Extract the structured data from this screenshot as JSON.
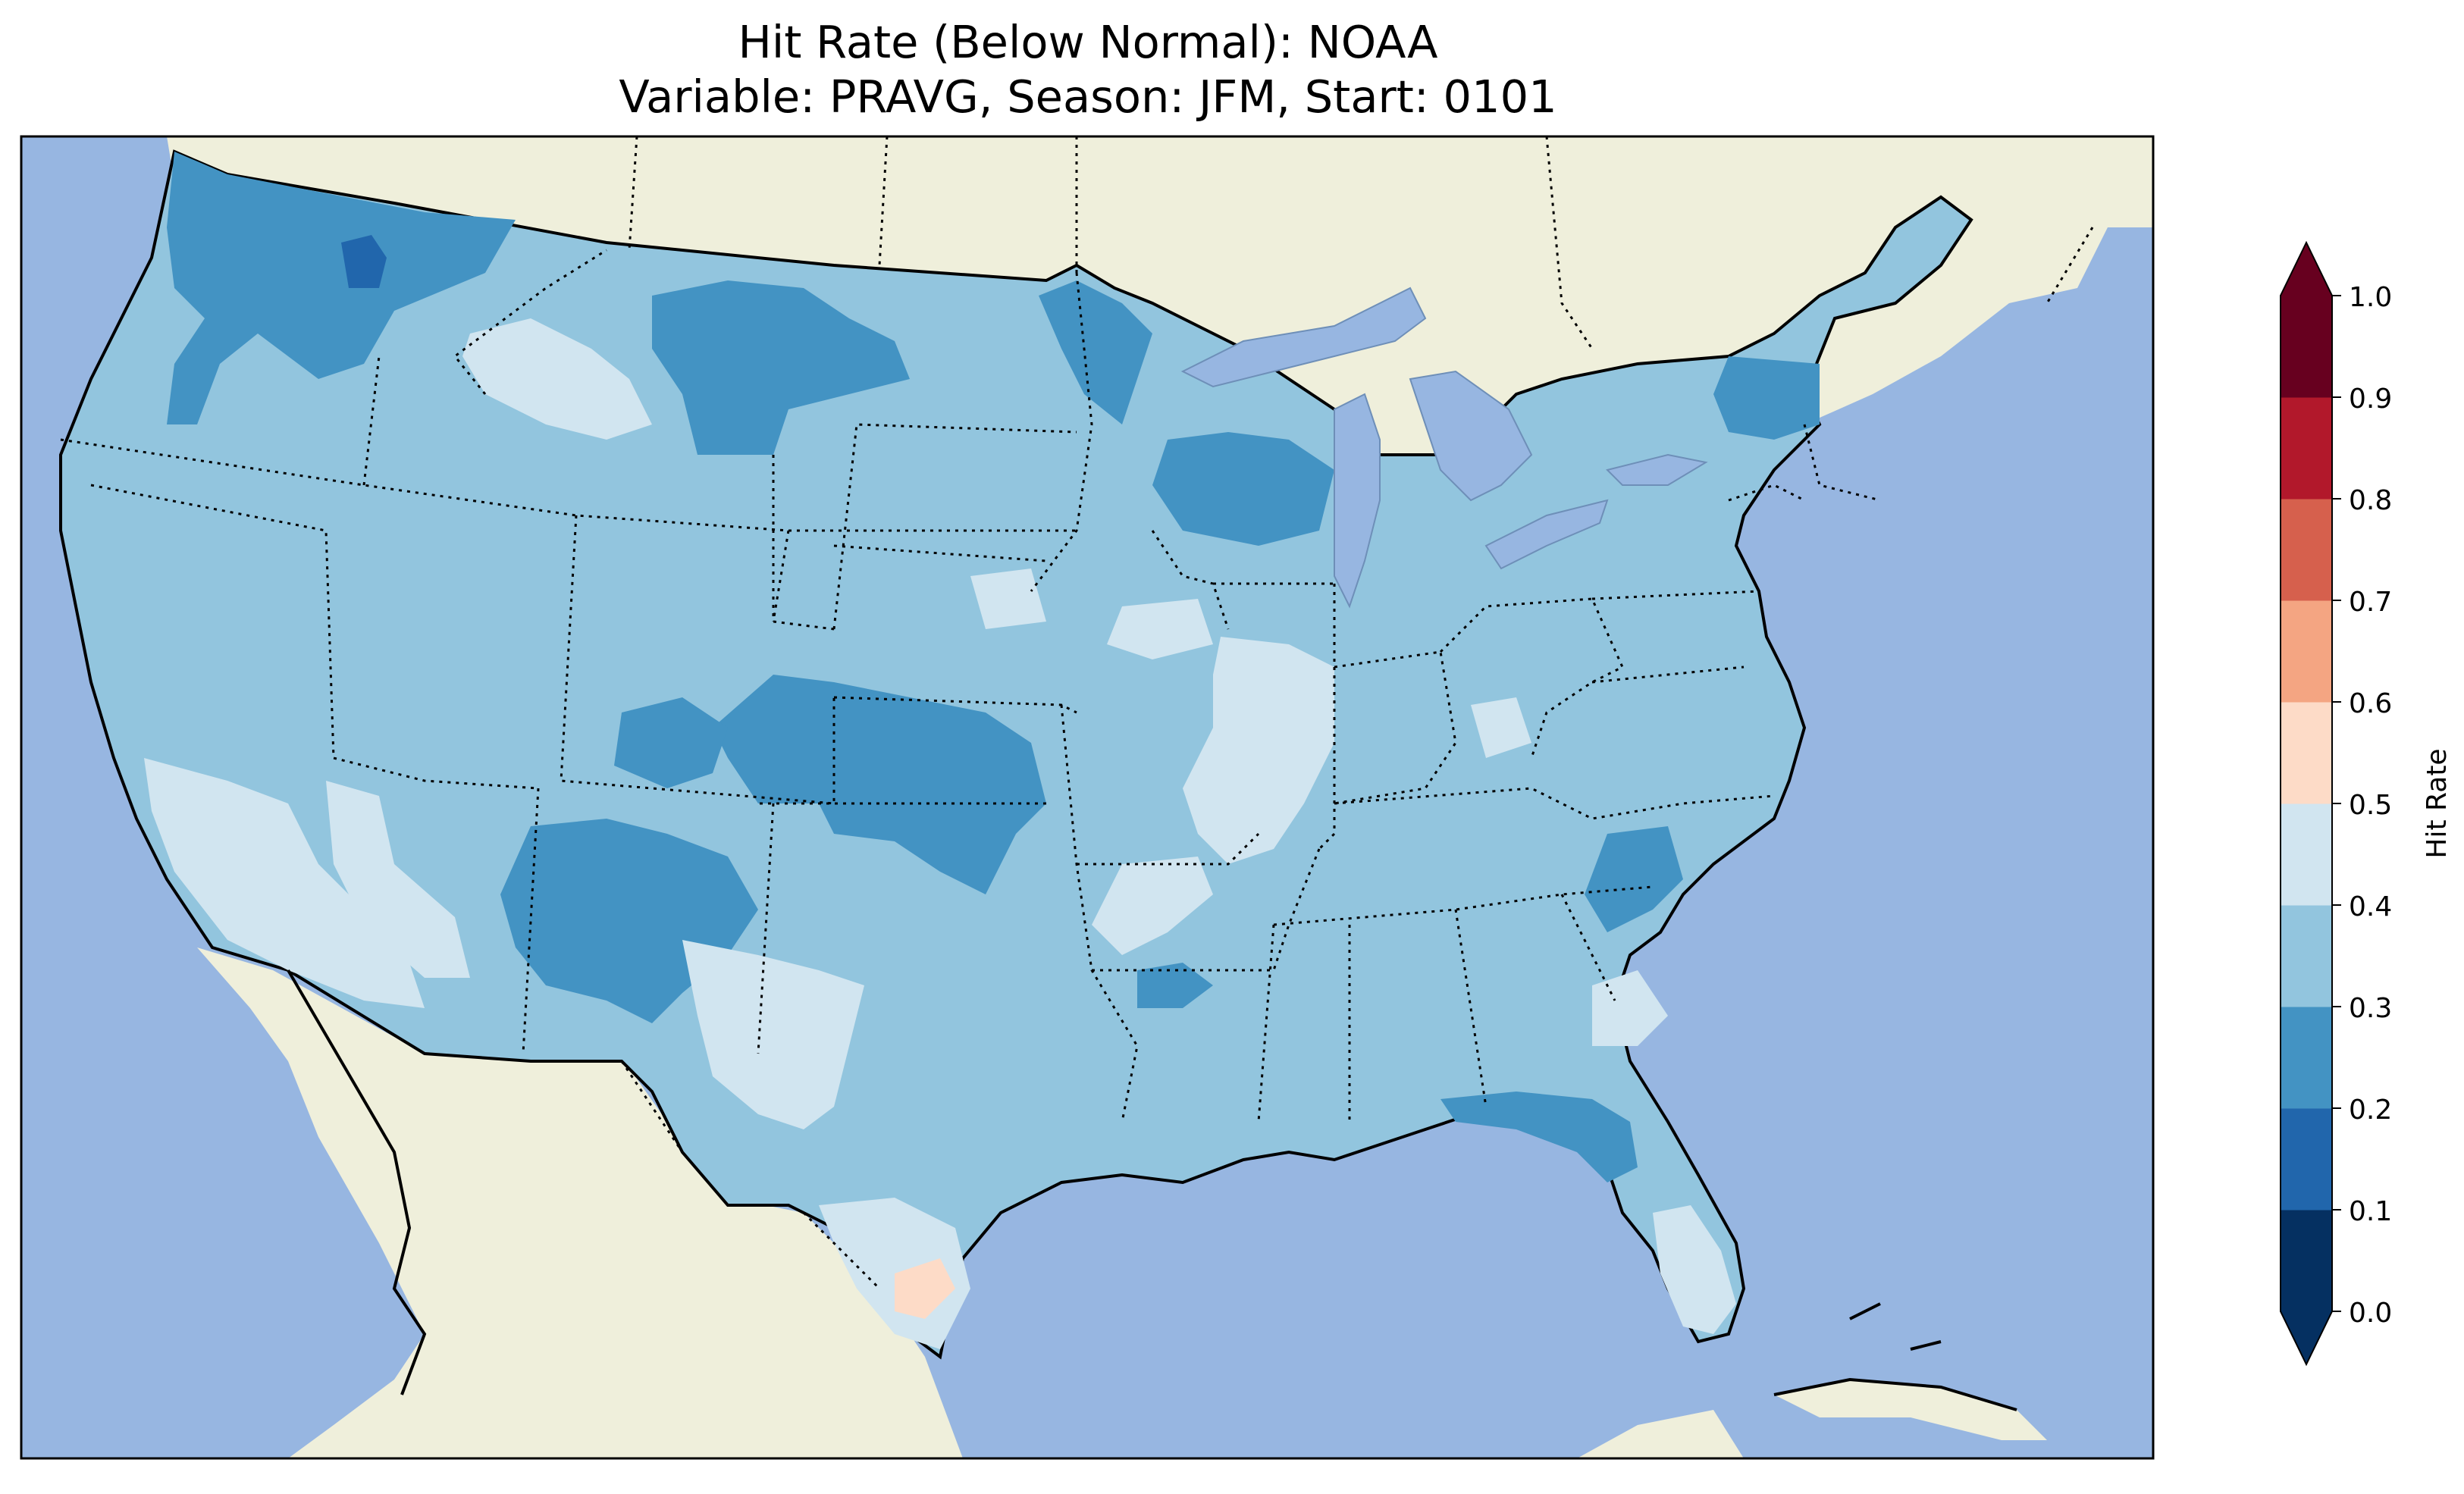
{
  "title": {
    "line1": "Hit Rate (Below Normal): NOAA",
    "line2": "Variable: PRAVG, Season: JFM, Start: 0101"
  },
  "colors": {
    "ocean": "#97b6e1",
    "land": "#efefdb",
    "lakes": "#97b6e1"
  },
  "colorbar": {
    "label": "Hit Rate",
    "ticks": [
      "0.0",
      "0.1",
      "0.2",
      "0.3",
      "0.4",
      "0.5",
      "0.6",
      "0.7",
      "0.8",
      "0.9",
      "1.0"
    ],
    "colors": [
      "#053061",
      "#2166ac",
      "#4393c3",
      "#92c5de",
      "#d1e5f0",
      "#fddbc7",
      "#f4a582",
      "#d6604d",
      "#b2182b",
      "#67001f"
    ],
    "extend": "both"
  },
  "map_data": {
    "region": "CONUS",
    "dominant_category": "0.3-0.4",
    "features": [
      {
        "area": "Pacific Northwest / Northern Rockies",
        "category": "0.2-0.3"
      },
      {
        "area": "Washington Cascades",
        "category": "0.1-0.2"
      },
      {
        "area": "Idaho / Wyoming plains",
        "category": "0.4-0.5"
      },
      {
        "area": "Colorado / Kansas",
        "category": "0.2-0.3"
      },
      {
        "area": "Arizona / New Mexico",
        "category": "0.2-0.3"
      },
      {
        "area": "Central / Southern Texas",
        "category": "0.4-0.5"
      },
      {
        "area": "South Texas",
        "category": "0.5-0.6"
      },
      {
        "area": "Illinois / Missouri",
        "category": "0.4-0.5"
      },
      {
        "area": "Wisconsin / Minnesota",
        "category": "0.2-0.3"
      },
      {
        "area": "Southern Florida",
        "category": "0.4-0.5"
      },
      {
        "area": "Florida Panhandle",
        "category": "0.2-0.3"
      }
    ]
  }
}
